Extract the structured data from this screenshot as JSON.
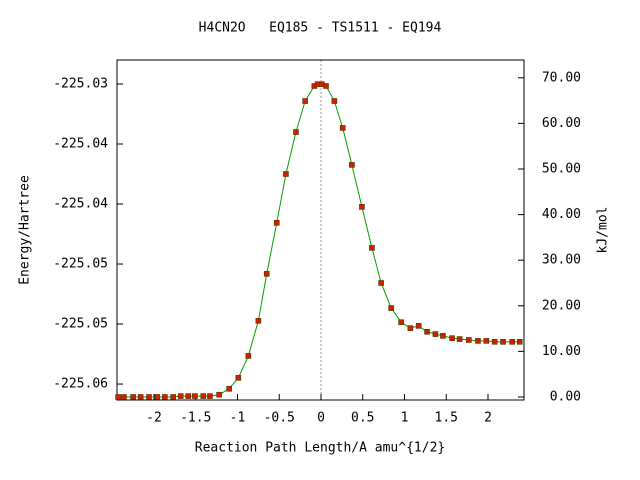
{
  "chart_data": {
    "type": "line",
    "title": "H4CN2O   EQ185 - TS1511 - EQ194",
    "xlabel": "Reaction Path Length/A amu^{1/2}",
    "ylabel": "Energy/Hartree",
    "y2label": "kJ/mol",
    "x": [
      -2.43,
      -2.36,
      -2.25,
      -2.16,
      -2.06,
      -1.96,
      -1.87,
      -1.77,
      -1.68,
      -1.59,
      -1.51,
      -1.41,
      -1.33,
      -1.22,
      -1.1,
      -0.99,
      -0.87,
      -0.75,
      -0.65,
      -0.53,
      -0.42,
      -0.3,
      -0.19,
      -0.08,
      -0.04,
      0.01,
      0.06,
      0.16,
      0.26,
      0.37,
      0.49,
      0.61,
      0.72,
      0.84,
      0.96,
      1.07,
      1.17,
      1.27,
      1.37,
      1.46,
      1.57,
      1.66,
      1.77,
      1.88,
      1.98,
      2.08,
      2.18,
      2.29,
      2.38
    ],
    "series": [
      {
        "color": "#00a000",
        "marker_color": "#cc2200",
        "axis": "y2",
        "values": [
          0,
          0,
          0,
          0,
          0,
          0,
          0,
          0,
          0.2,
          0.2,
          0.2,
          0.2,
          0.2,
          0.5,
          1.8,
          4.2,
          9.0,
          16.7,
          27.0,
          38.2,
          48.9,
          58.1,
          64.9,
          68.2,
          68.6,
          68.6,
          68.2,
          64.9,
          59.0,
          50.9,
          41.7,
          32.7,
          25.0,
          19.5,
          16.4,
          15.1,
          15.6,
          14.3,
          13.8,
          13.4,
          12.9,
          12.7,
          12.5,
          12.3,
          12.3,
          12.1,
          12.1,
          12.1,
          12.1
        ]
      }
    ],
    "xlim": [
      -2.443,
      2.431
    ],
    "xticks": [
      -2,
      -1.5,
      -1,
      -0.5,
      0,
      0.5,
      1,
      1.5,
      2
    ],
    "ylim": [
      -225.05883,
      -225.0305
    ],
    "yticks": [
      {
        "value": -225.0575,
        "label": "-225.06"
      },
      {
        "value": -225.0525,
        "label": "-225.05"
      },
      {
        "value": -225.0475,
        "label": "-225.05"
      },
      {
        "value": -225.0425,
        "label": "-225.04"
      },
      {
        "value": -225.0375,
        "label": "-225.04"
      },
      {
        "value": -225.0325,
        "label": "-225.03"
      }
    ],
    "y2lim": [
      -0.66,
      73.9
    ],
    "y2ticks": [
      {
        "value": 0,
        "label": "0.00"
      },
      {
        "value": 10,
        "label": "10.00"
      },
      {
        "value": 20,
        "label": "20.00"
      },
      {
        "value": 30,
        "label": "30.00"
      },
      {
        "value": 40,
        "label": "40.00"
      },
      {
        "value": 50,
        "label": "50.00"
      },
      {
        "value": 60,
        "label": "60.00"
      },
      {
        "value": 70,
        "label": "70.00"
      }
    ]
  }
}
